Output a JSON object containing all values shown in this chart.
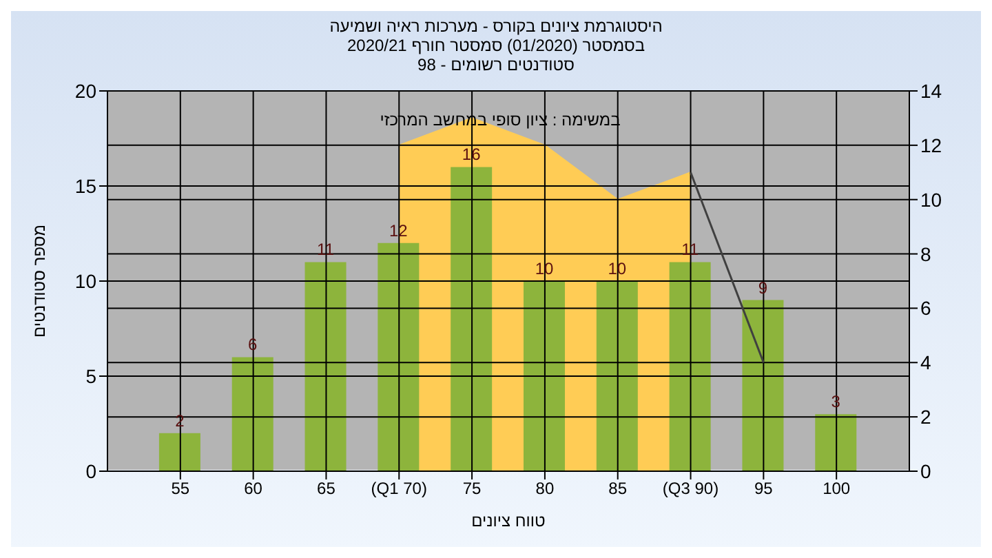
{
  "chart_data": {
    "type": "bar",
    "title": "היסטוגרמת ציונים בקורס - מערכות ראיה ושמיעה\nבסמסטר  (01/2020)  סמסטר חורף 2020/21\nסטודנטים רשומים - 98",
    "xlabel": "טווח ציונים",
    "ylabel": "מספר סטודנטים",
    "annotations": [
      "במשימה : ציון סופי במחשב המרכזי"
    ],
    "categories": [
      "55",
      "60",
      "65",
      "(Q1 70)",
      "75",
      "80",
      "85",
      "(Q3 90)",
      "95",
      "100"
    ],
    "series": [
      {
        "color": "#8db43c",
        "values": [
          2,
          6,
          11,
          12,
          16,
          10,
          10,
          11,
          9,
          3
        ],
        "value_labels": [
          "2",
          "6",
          "11",
          "12",
          "16",
          "10",
          "10",
          "11",
          "9",
          "3"
        ]
      },
      {
        "type": "area",
        "axis": "y2",
        "color": "#ffcc55",
        "values": [
          null,
          null,
          null,
          12,
          13,
          12,
          10,
          11,
          null,
          null
        ]
      },
      {
        "type": "line",
        "axis": "y2",
        "color": "#404040",
        "values": [
          null,
          null,
          null,
          null,
          null,
          null,
          null,
          11,
          4,
          null
        ]
      }
    ],
    "ylim": [
      0,
      20
    ],
    "yticks": [
      0,
      5,
      10,
      15,
      20
    ],
    "y2lim": [
      0,
      14
    ],
    "y2ticks": [
      0,
      2,
      4,
      6,
      8,
      10,
      12,
      14
    ],
    "grid": true
  }
}
